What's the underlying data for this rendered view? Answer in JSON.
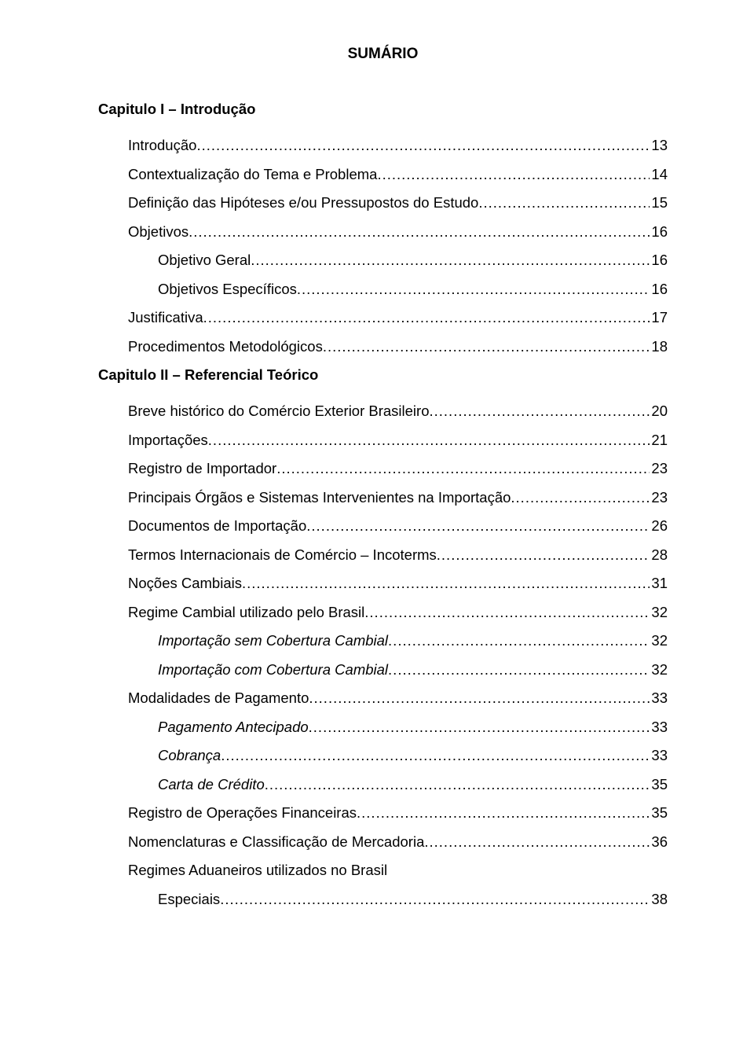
{
  "title": "SUMÁRIO",
  "chapter1": "Capitulo I – Introdução",
  "chapter2": "Capitulo II – Referencial Teórico",
  "e": {
    "introducao": {
      "label": "Introdução",
      "page": "13"
    },
    "contextualizacao": {
      "label": "Contextualização do Tema e Problema",
      "page": "14"
    },
    "definicao": {
      "label": "Definição das Hipóteses e/ou Pressupostos do Estudo",
      "page": "15"
    },
    "objetivos": {
      "label": "Objetivos",
      "page": "16"
    },
    "obj_geral": {
      "label": "Objetivo Geral",
      "page": "16"
    },
    "obj_esp": {
      "label": "Objetivos Específicos",
      "page": "16"
    },
    "justificativa": {
      "label": "Justificativa",
      "page": "17"
    },
    "procedimentos": {
      "label": "Procedimentos Metodológicos",
      "page": "18"
    },
    "breve": {
      "label": "Breve histórico do Comércio Exterior Brasileiro",
      "page": "20"
    },
    "importacoes": {
      "label": "Importações",
      "page": "21"
    },
    "registro_imp": {
      "label": "Registro de Importador",
      "page": "23"
    },
    "orgaos": {
      "label": "Principais Órgãos e Sistemas Intervenientes na Importação",
      "page": "23"
    },
    "documentos": {
      "label": "Documentos de Importação",
      "page": "26"
    },
    "incoterms": {
      "label": "Termos Internacionais de Comércio – Incoterms",
      "page": "28"
    },
    "nocoes": {
      "label": "Noções Cambiais",
      "page": "31"
    },
    "regime_cambial": {
      "label": "Regime Cambial utilizado pelo Brasil",
      "page": "32"
    },
    "imp_sem": {
      "label": "Importação sem Cobertura Cambial",
      "page": "32"
    },
    "imp_com": {
      "label": "Importação com Cobertura Cambial",
      "page": "32"
    },
    "modalidades": {
      "label": "Modalidades de Pagamento",
      "page": "33"
    },
    "pag_ant": {
      "label": "Pagamento Antecipado",
      "page": "33"
    },
    "cobranca": {
      "label": "Cobrança",
      "page": "33"
    },
    "carta": {
      "label": "Carta de Crédito",
      "page": "35"
    },
    "reg_op": {
      "label": "Registro de Operações Financeiras",
      "page": "35"
    },
    "nomenclaturas": {
      "label": "Nomenclaturas e Classificação de Mercadoria",
      "page": "36"
    },
    "regimes_ad": {
      "label": "Regimes Aduaneiros utilizados no Brasil"
    },
    "especiais": {
      "label": "Especiais",
      "page": "38"
    }
  }
}
